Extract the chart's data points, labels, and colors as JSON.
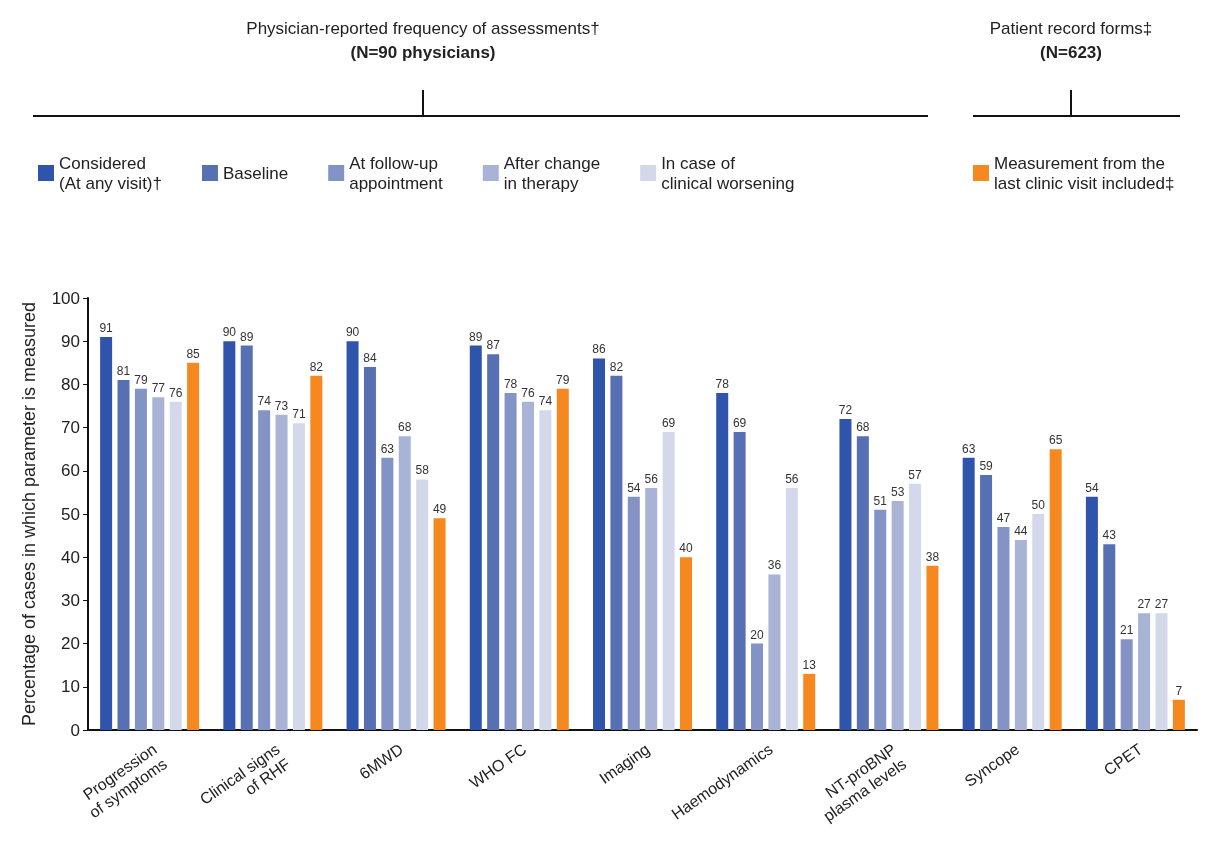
{
  "chart_data": {
    "type": "bar",
    "annotations": [
      "Physician-reported frequency of assessments†",
      "(N=90 physicians)",
      "Patient record forms‡",
      "(N=623)"
    ],
    "ylabel": "Percentage of cases in which parameter is measured",
    "categories": [
      "Progression\nof symptoms",
      "Clinical signs\nof RHF",
      "6MWD",
      "WHO FC",
      "Imaging",
      "Haemodynamics",
      "NT-proBNP\nplasma levels",
      "Syncope",
      "CPET"
    ],
    "series": [
      {
        "name": "Considered\n(At any visit)†",
        "color": "#2e55ab",
        "values": [
          91,
          90,
          90,
          89,
          86,
          78,
          72,
          63,
          54
        ]
      },
      {
        "name": "Baseline",
        "color": "#5770b3",
        "values": [
          81,
          89,
          84,
          87,
          82,
          69,
          68,
          59,
          43
        ]
      },
      {
        "name": "At follow-up\nappointment",
        "color": "#8493c6",
        "values": [
          79,
          74,
          63,
          78,
          54,
          20,
          51,
          47,
          21
        ]
      },
      {
        "name": "After change\nin therapy",
        "color": "#a8b3d6",
        "values": [
          77,
          73,
          68,
          76,
          56,
          36,
          53,
          44,
          27
        ]
      },
      {
        "name": "In case of\nclinical worsening",
        "color": "#d3d9ea",
        "values": [
          76,
          71,
          58,
          74,
          69,
          56,
          57,
          50,
          27
        ]
      },
      {
        "name": "Measurement from the\nlast clinic visit included‡",
        "color": "#f5891f",
        "values": [
          85,
          82,
          49,
          79,
          40,
          13,
          38,
          65,
          7
        ]
      }
    ],
    "ylim": [
      0,
      100
    ],
    "yticks": [
      0,
      10,
      20,
      30,
      40,
      50,
      60,
      70,
      80,
      90,
      100
    ],
    "data_labels": true,
    "grid": false,
    "legend": "top"
  }
}
